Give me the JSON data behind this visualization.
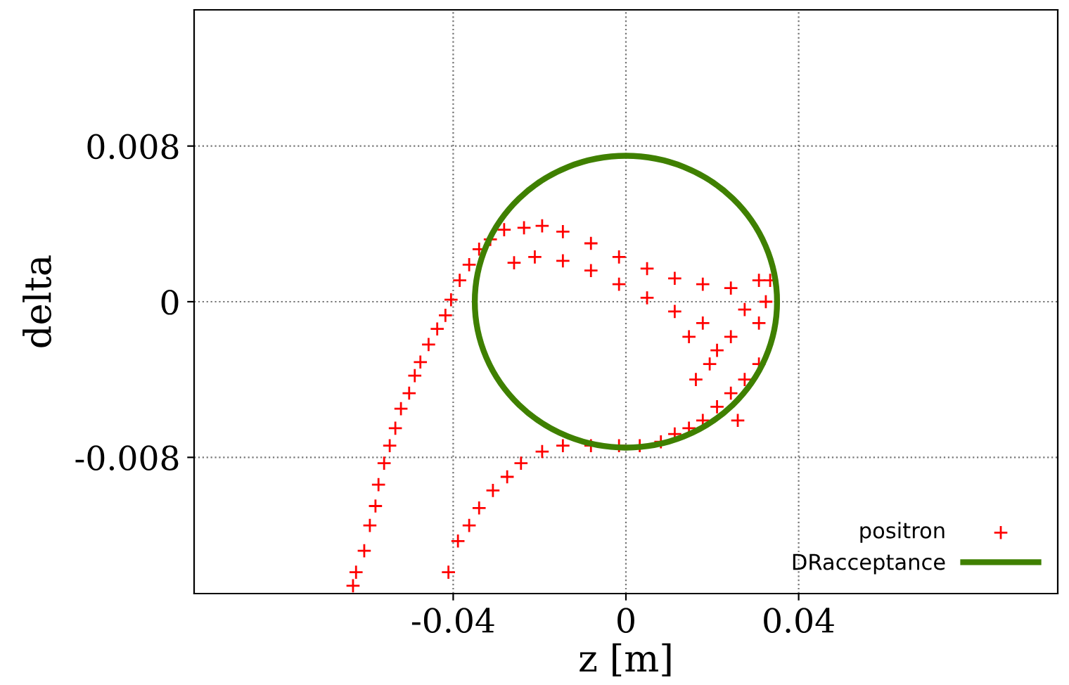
{
  "chart_data": {
    "type": "scatter",
    "annotations": [
      "DRacceptance"
    ],
    "xlabel": "z [m]",
    "ylabel": "delta",
    "xlim": [
      -0.1,
      0.1
    ],
    "ylim": [
      -0.015,
      0.015
    ],
    "xticks": [
      -0.04,
      0,
      0.04
    ],
    "yticks": [
      -0.008,
      0,
      0.008
    ],
    "grid": true,
    "legend": "bottom right",
    "series": [
      {
        "name": "positron",
        "marker": "cross",
        "color": "#ff0000",
        "x": [
          -0.0632,
          -0.0625,
          -0.0606,
          -0.0593,
          -0.058,
          -0.0573,
          -0.056,
          -0.0547,
          -0.0534,
          -0.0521,
          -0.0502,
          -0.0489,
          -0.0476,
          -0.0457,
          -0.0437,
          -0.0418,
          -0.0405,
          -0.0385,
          -0.0363,
          -0.034,
          -0.0314,
          -0.0282,
          -0.0236,
          -0.0194,
          -0.0146,
          -0.0081,
          -0.0016,
          0.0049,
          0.0113,
          0.0178,
          0.0243,
          0.0308,
          0.0334,
          -0.0259,
          -0.0211,
          -0.0146,
          -0.0081,
          -0.0016,
          0.0049,
          0.0113,
          0.0178,
          0.0211,
          0.0243,
          0.0275,
          0.0308,
          0.0324,
          0.0308,
          0.0275,
          0.0243,
          0.0211,
          0.0178,
          0.0146,
          0.0113,
          0.0081,
          0.0032,
          -0.0016,
          -0.0081,
          -0.0146,
          -0.0194,
          -0.0243,
          -0.0275,
          -0.0308,
          -0.034,
          -0.0363,
          -0.0389,
          -0.0411,
          0.0162,
          0.0194,
          0.0146,
          0.0259
        ],
        "values": [
          -0.0146,
          -0.0139,
          -0.0128,
          -0.0115,
          -0.0105,
          -0.0094,
          -0.0083,
          -0.0074,
          -0.0065,
          -0.0055,
          -0.0047,
          -0.0038,
          -0.0031,
          -0.0022,
          -0.0014,
          -0.0007,
          0.0001,
          0.0011,
          0.0019,
          0.0027,
          0.0032,
          0.0037,
          0.0038,
          0.0039,
          0.0036,
          0.003,
          0.0023,
          0.0017,
          0.0012,
          0.0009,
          0.0007,
          0.0011,
          0.0011,
          0.002,
          0.0023,
          0.0021,
          0.0016,
          0.0009,
          0.0002,
          -0.0005,
          -0.0011,
          -0.0025,
          -0.0018,
          -0.0004,
          -0.0011,
          0.0,
          -0.0032,
          -0.004,
          -0.0047,
          -0.0054,
          -0.0061,
          -0.0065,
          -0.0068,
          -0.0072,
          -0.0074,
          -0.0074,
          -0.0074,
          -0.0074,
          -0.0077,
          -0.0083,
          -0.009,
          -0.0097,
          -0.0106,
          -0.0115,
          -0.0123,
          -0.0139,
          -0.004,
          -0.0032,
          -0.0018,
          -0.0061
        ]
      }
    ]
  }
}
